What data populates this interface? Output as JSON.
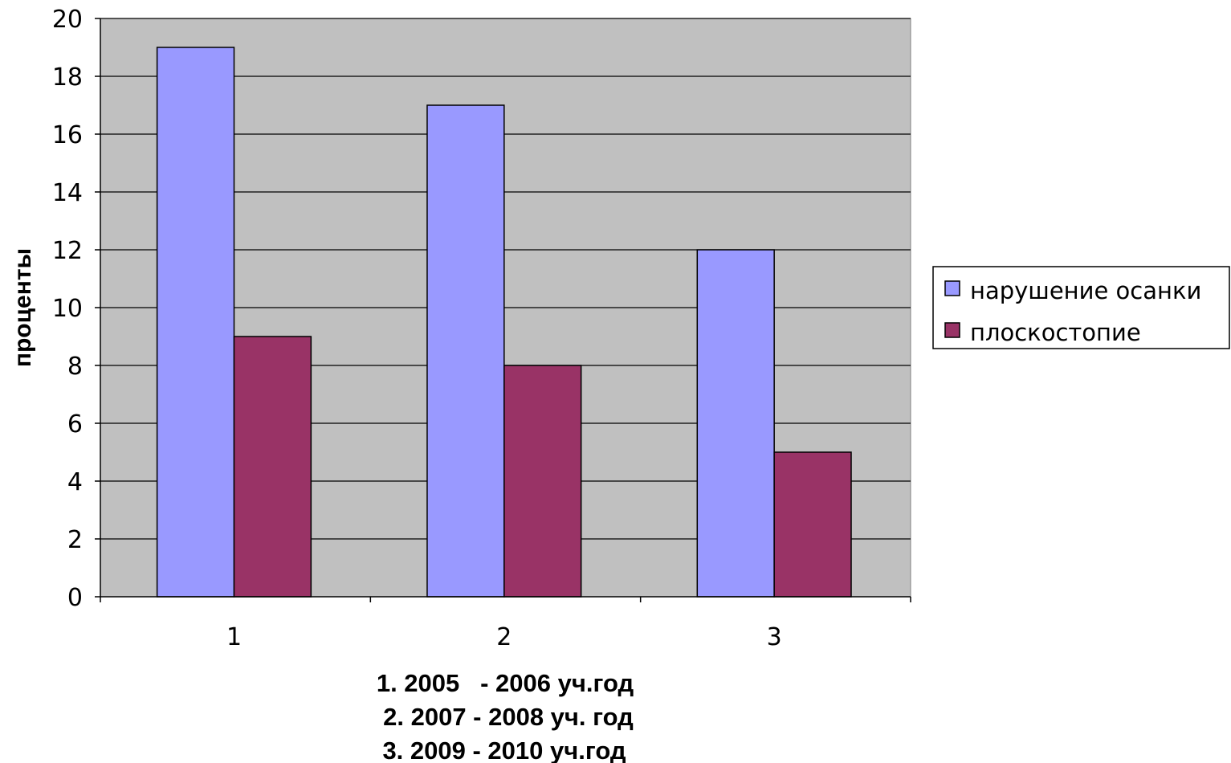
{
  "chart_data": {
    "type": "bar",
    "categories": [
      "1",
      "2",
      "3"
    ],
    "series": [
      {
        "name": "нарушение осанки",
        "values": [
          19,
          17,
          12
        ],
        "color": "#9999ff"
      },
      {
        "name": "плоскостопие",
        "values": [
          9,
          8,
          5
        ],
        "color": "#993366"
      }
    ],
    "ylabel": "проценты",
    "xlabel_lines": [
      "1. 2005   - 2006 уч.год",
      "2. 2007 - 2008 уч. год",
      "3. 2009 - 2010 уч.год"
    ],
    "ylim": [
      0,
      20
    ],
    "yticks": [
      0,
      2,
      4,
      6,
      8,
      10,
      12,
      14,
      16,
      18,
      20
    ],
    "grid": true,
    "plot_background": "#c0c0c0",
    "legend_position": "right"
  }
}
